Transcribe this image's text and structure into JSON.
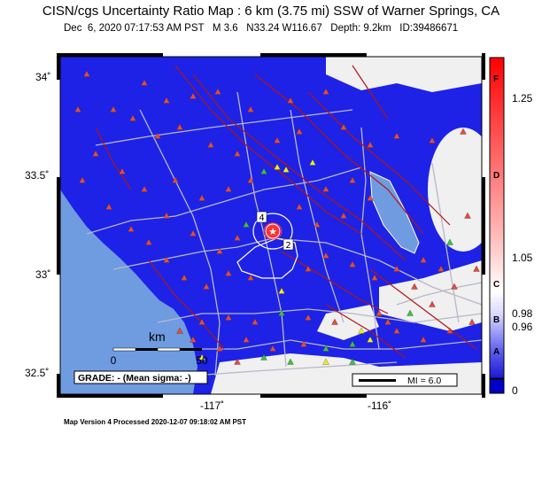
{
  "header": {
    "title": "CISN/cgs Uncertainty Ratio Map : 6 km (3.75 mi) SSW of Warner Springs, CA",
    "subtitle": "Dec  6, 2020 07:17:53 AM PST   M 3.6   N33.24 W116.67   Depth: 9.2km   ID:39486671"
  },
  "map": {
    "lat_ticks": [
      "34˚",
      "33.5˚",
      "33˚",
      "32.5˚"
    ],
    "lon_ticks": [
      "-117˚",
      "-116˚"
    ],
    "scale_bar": {
      "unit": "km",
      "zero": "0",
      "end": "50"
    },
    "grade_box": "GRADE: - (Mean sigma: -)",
    "mi_legend": "MI = 6.0",
    "contour_labels": [
      "4",
      "2"
    ],
    "colors": {
      "ocean": "#6f9be0",
      "low_ratio": "#1e22e6",
      "no_data": "#f0f0f0",
      "faults": "#b01515",
      "roads": "#b8b8c8",
      "stations_red": "#e84a3a",
      "stations_yellow": "#f2ef1a",
      "stations_green": "#3ac43a"
    }
  },
  "colorbar": {
    "value_labels": [
      "1.25",
      "1.05",
      "0.98",
      "0.96",
      "0"
    ],
    "letters": [
      "F",
      "D",
      "C",
      "B",
      "A"
    ]
  },
  "footer": "Map Version 4 Processed 2020-12-07 09:18:02 AM PST"
}
